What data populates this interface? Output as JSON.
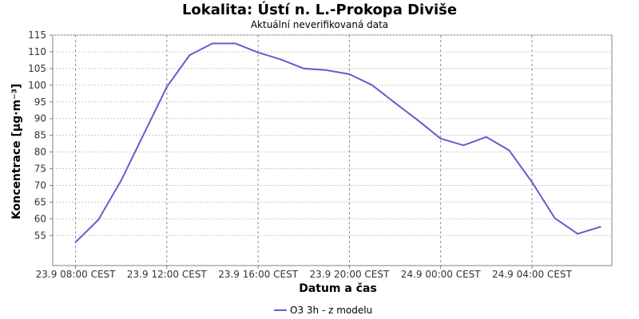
{
  "chart_data": {
    "type": "line",
    "title": "Lokalita: Ústí n. L.-Prokopa Diviše",
    "subtitle": "Aktuální neverifikovaná data",
    "xlabel": "Datum a čas",
    "ylabel": "Koncentrace [µg·m⁻³]",
    "ylim": [
      46,
      115
    ],
    "xlim_hours": [
      7,
      31.5
    ],
    "y_ticks": [
      55,
      60,
      65,
      70,
      75,
      80,
      85,
      90,
      95,
      100,
      105,
      110,
      115
    ],
    "x_ticks": [
      {
        "hour": 8,
        "label": "23.9 08:00 CEST"
      },
      {
        "hour": 12,
        "label": "23.9 12:00 CEST"
      },
      {
        "hour": 16,
        "label": "23.9 16:00 CEST"
      },
      {
        "hour": 20,
        "label": "23.9 20:00 CEST"
      },
      {
        "hour": 24,
        "label": "24.9 00:00 CEST"
      },
      {
        "hour": 28,
        "label": "24.9 04:00 CEST"
      }
    ],
    "grid": true,
    "legend_position": "bottom-center",
    "series": [
      {
        "name": "O3 3h - z modelu",
        "color": "#6a5acd",
        "x": [
          8,
          9,
          10,
          11,
          12,
          13,
          14,
          15,
          16,
          17,
          18,
          19,
          20,
          21,
          22,
          23,
          24,
          25,
          26,
          27,
          28,
          29,
          30,
          31
        ],
        "y": [
          53,
          59.7,
          71.5,
          85.5,
          99.5,
          109,
          112.5,
          112.5,
          109.8,
          107.7,
          105,
          104.5,
          103.3,
          100,
          94.7,
          89.5,
          84,
          82,
          84.5,
          80.5,
          71,
          60.2,
          55.5,
          57.6
        ]
      }
    ]
  }
}
